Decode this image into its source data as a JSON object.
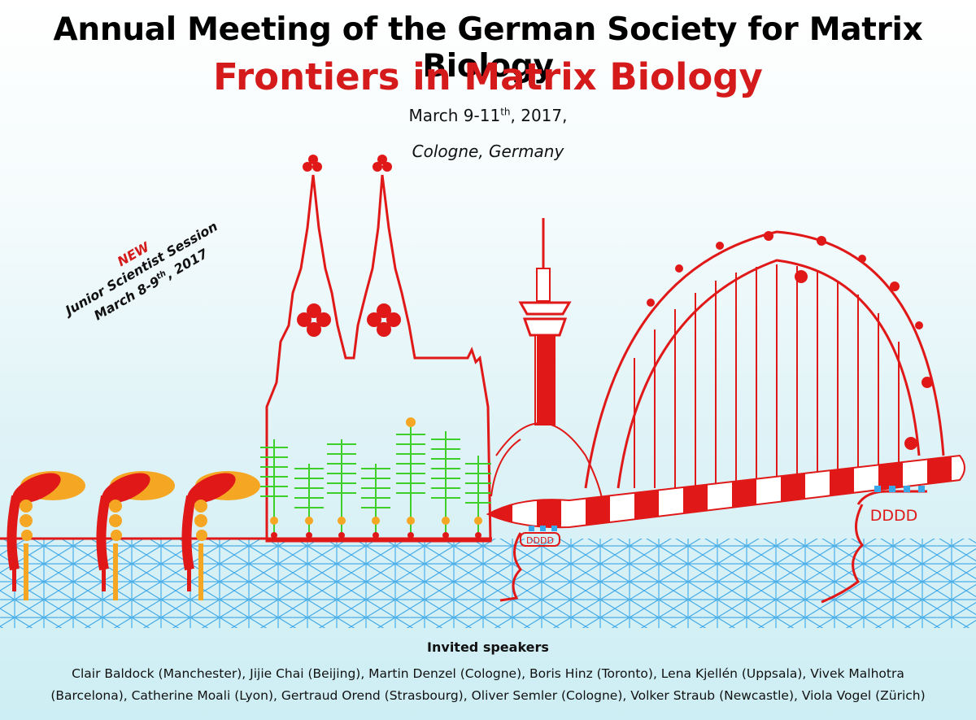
{
  "poster": {
    "title": "Annual Meeting of the German Society for Matrix Biology",
    "subtitle": "Frontiers in Matrix Biology",
    "date_main": "March 9-11",
    "date_sup": "th",
    "date_tail": ", 2017,",
    "location": "Cologne, Germany"
  },
  "junior_session": {
    "new_label": "NEW",
    "line1": "Junior Scientist Session",
    "line2_main": "March 8-9",
    "line2_sup": "th",
    "line2_tail": ", 2017"
  },
  "illustration": {
    "bridge_labels": [
      "DDDD",
      "DDDD"
    ],
    "colors": {
      "red": "#e01818",
      "green": "#3ecf2a",
      "orange": "#f5a623",
      "blue": "#3aa7e8"
    }
  },
  "speakers": {
    "heading": "Invited speakers",
    "line1": "Clair Baldock (Manchester), Jijie Chai (Beijing), Martin Denzel (Cologne), Boris Hinz (Toronto), Lena Kjellén (Uppsala), Vivek Malhotra",
    "line2": "(Barcelona), Catherine Moali (Lyon), Gertraud Orend (Strasbourg), Oliver Semler (Cologne), Volker Straub (Newcastle), Viola Vogel (Zürich)"
  }
}
